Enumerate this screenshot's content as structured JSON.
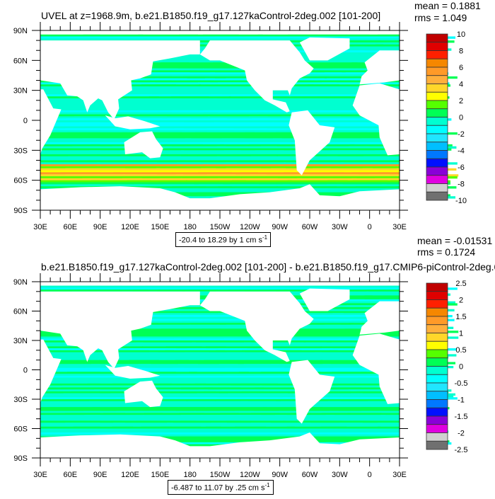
{
  "plots": [
    {
      "title": "UVEL at z=1968.9m, b.e21.B1850.f19_g17.127kaControl-2deg.002 [101-200]",
      "mean": "mean = 0.1881",
      "rms": "rms = 1.049",
      "range_text": "-20.4 to 18.29 by 1 cm s",
      "range_sup": "-1",
      "colorbar_labels": [
        "10",
        "8",
        "6",
        "4",
        "2",
        "0",
        "-2",
        "-4",
        "-6",
        "-8",
        "-10"
      ],
      "intensity": "strong"
    },
    {
      "title": "b.e21.B1850.f19_g17.127kaControl-2deg.002 [101-200] - b.e21.B1850.f19_g17.CMIP6-piControl-2deg.0",
      "mean": "mean = -0.01531",
      "rms": "rms = 0.1724",
      "range_text": "-6.487 to 11.07 by .25 cm s",
      "range_sup": "-1",
      "colorbar_labels": [
        "2.5",
        "2",
        "1.5",
        "1",
        "0.5",
        "0",
        "-0.5",
        "-1",
        "-1.5",
        "-2",
        "-2.5"
      ],
      "intensity": "weak"
    }
  ],
  "axes": {
    "lon_labels": [
      "30E",
      "60E",
      "90E",
      "120E",
      "150E",
      "180",
      "150W",
      "120W",
      "90W",
      "60W",
      "30W",
      "0",
      "30E"
    ],
    "lat_labels": [
      "90N",
      "60N",
      "30N",
      "0",
      "30S",
      "60S",
      "90S"
    ]
  },
  "colorbar_colors": [
    "#c00000",
    "#e00000",
    "#ff2000",
    "#f58700",
    "#ff9a28",
    "#ffaf3c",
    "#ffd72a",
    "#ffff00",
    "#55ff00",
    "#00ff55",
    "#00ffd0",
    "#00ffff",
    "#20e6ff",
    "#00bfff",
    "#0078ff",
    "#0010ff",
    "#8a00d8",
    "#e000e0",
    "#d0d0d0",
    "#707070"
  ],
  "chart_data": [
    {
      "type": "heatmap",
      "title": "UVEL at z=1968.9m, b.e21.B1850.f19_g17.127kaControl-2deg.002 [101-200]",
      "xlim": [
        "30E",
        "30E"
      ],
      "ylim": [
        "90S",
        "90N"
      ],
      "levels_range": [
        -10,
        10
      ],
      "level_step": 1,
      "units": "cm s-1"
    },
    {
      "type": "heatmap",
      "title": "b.e21.B1850.f19_g17.127kaControl-2deg.002 [101-200] - b.e21.B1850.f19_g17.CMIP6-piControl-2deg.0",
      "xlim": [
        "30E",
        "30E"
      ],
      "ylim": [
        "90S",
        "90N"
      ],
      "levels_range": [
        -2.5,
        2.5
      ],
      "level_step": 0.25,
      "units": "cm s-1"
    }
  ]
}
